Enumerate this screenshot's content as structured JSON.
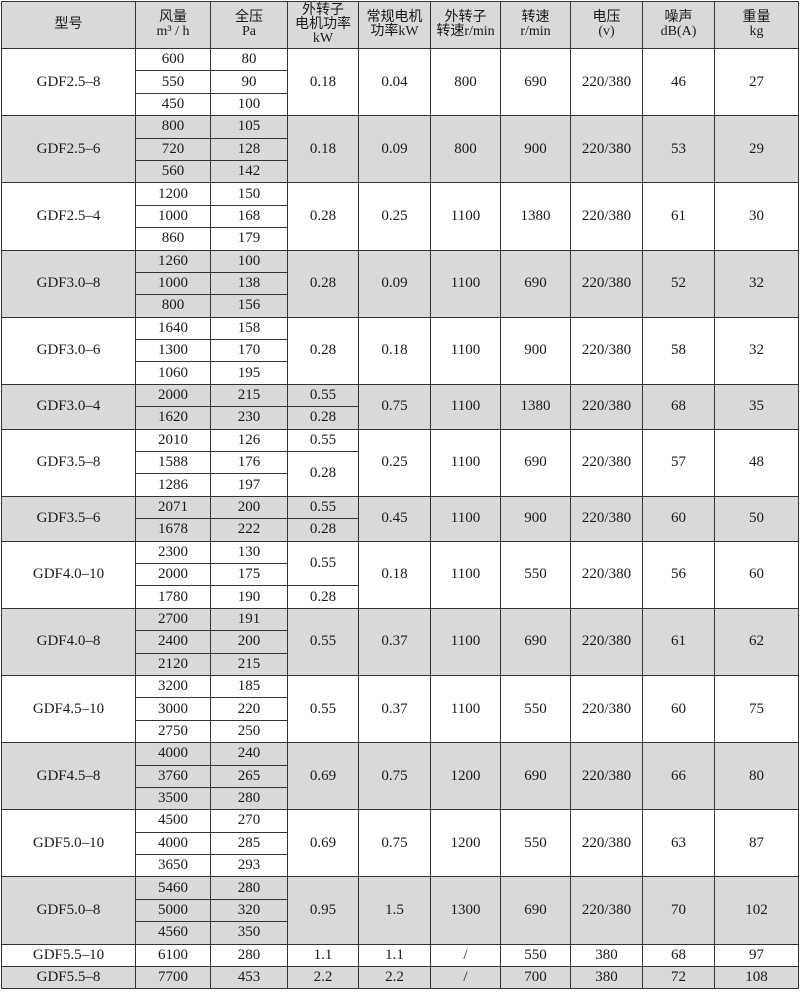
{
  "headers": [
    [
      "型号"
    ],
    [
      "风量",
      "m³ / h"
    ],
    [
      "全压",
      "Pa"
    ],
    [
      "外转子",
      "电机功率",
      "kW"
    ],
    [
      "常规电机",
      "功率kW"
    ],
    [
      "外转子",
      "转速r/min"
    ],
    [
      "转速",
      "r/min"
    ],
    [
      "电压",
      "(v)"
    ],
    [
      "噪声",
      "dB(A)"
    ],
    [
      "重量",
      "kg"
    ]
  ],
  "rows": [
    {
      "model": "GDF2.5–8",
      "flow": [
        "600",
        "550",
        "450"
      ],
      "pressure": [
        "80",
        "90",
        "100"
      ],
      "ext_power": [
        [
          "0.18",
          3
        ]
      ],
      "motor_power": "0.04",
      "ext_speed": "800",
      "speed": "690",
      "voltage": "220/380",
      "noise": "46",
      "weight": "27"
    },
    {
      "model": "GDF2.5–6",
      "flow": [
        "800",
        "720",
        "560"
      ],
      "pressure": [
        "105",
        "128",
        "142"
      ],
      "ext_power": [
        [
          "0.18",
          3
        ]
      ],
      "motor_power": "0.09",
      "ext_speed": "800",
      "speed": "900",
      "voltage": "220/380",
      "noise": "53",
      "weight": "29"
    },
    {
      "model": "GDF2.5–4",
      "flow": [
        "1200",
        "1000",
        "860"
      ],
      "pressure": [
        "150",
        "168",
        "179"
      ],
      "ext_power": [
        [
          "0.28",
          3
        ]
      ],
      "motor_power": "0.25",
      "ext_speed": "1100",
      "speed": "1380",
      "voltage": "220/380",
      "noise": "61",
      "weight": "30"
    },
    {
      "model": "GDF3.0–8",
      "flow": [
        "1260",
        "1000",
        "800"
      ],
      "pressure": [
        "100",
        "138",
        "156"
      ],
      "ext_power": [
        [
          "0.28",
          3
        ]
      ],
      "motor_power": "0.09",
      "ext_speed": "1100",
      "speed": "690",
      "voltage": "220/380",
      "noise": "52",
      "weight": "32"
    },
    {
      "model": "GDF3.0–6",
      "flow": [
        "1640",
        "1300",
        "1060"
      ],
      "pressure": [
        "158",
        "170",
        "195"
      ],
      "ext_power": [
        [
          "0.28",
          3
        ]
      ],
      "motor_power": "0.18",
      "ext_speed": "1100",
      "speed": "900",
      "voltage": "220/380",
      "noise": "58",
      "weight": "32"
    },
    {
      "model": "GDF3.0–4",
      "flow": [
        "2000",
        "1620"
      ],
      "pressure": [
        "215",
        "230"
      ],
      "ext_power": [
        [
          "0.55",
          1
        ],
        [
          "0.28",
          1
        ]
      ],
      "motor_power": "0.75",
      "ext_speed": "1100",
      "speed": "1380",
      "voltage": "220/380",
      "noise": "68",
      "weight": "35"
    },
    {
      "model": "GDF3.5–8",
      "flow": [
        "2010",
        "1588",
        "1286"
      ],
      "pressure": [
        "126",
        "176",
        "197"
      ],
      "ext_power": [
        [
          "0.55",
          1
        ],
        [
          "0.28",
          2
        ]
      ],
      "motor_power": "0.25",
      "ext_speed": "1100",
      "speed": "690",
      "voltage": "220/380",
      "noise": "57",
      "weight": "48"
    },
    {
      "model": "GDF3.5–6",
      "flow": [
        "2071",
        "1678"
      ],
      "pressure": [
        "200",
        "222"
      ],
      "ext_power": [
        [
          "0.55",
          1
        ],
        [
          "0.28",
          1
        ]
      ],
      "motor_power": "0.45",
      "ext_speed": "1100",
      "speed": "900",
      "voltage": "220/380",
      "noise": "60",
      "weight": "50"
    },
    {
      "model": "GDF4.0–10",
      "flow": [
        "2300",
        "2000",
        "1780"
      ],
      "pressure": [
        "130",
        "175",
        "190"
      ],
      "ext_power": [
        [
          "0.55",
          2
        ],
        [
          "0.28",
          1
        ]
      ],
      "motor_power": "0.18",
      "ext_speed": "1100",
      "speed": "550",
      "voltage": "220/380",
      "noise": "56",
      "weight": "60"
    },
    {
      "model": "GDF4.0–8",
      "flow": [
        "2700",
        "2400",
        "2120"
      ],
      "pressure": [
        "191",
        "200",
        "215"
      ],
      "ext_power": [
        [
          "0.55",
          3
        ]
      ],
      "motor_power": "0.37",
      "ext_speed": "1100",
      "speed": "690",
      "voltage": "220/380",
      "noise": "61",
      "weight": "62"
    },
    {
      "model": "GDF4.5–10",
      "flow": [
        "3200",
        "3000",
        "2750"
      ],
      "pressure": [
        "185",
        "220",
        "250"
      ],
      "ext_power": [
        [
          "0.55",
          3
        ]
      ],
      "motor_power": "0.37",
      "ext_speed": "1100",
      "speed": "550",
      "voltage": "220/380",
      "noise": "60",
      "weight": "75"
    },
    {
      "model": "GDF4.5–8",
      "flow": [
        "4000",
        "3760",
        "3500"
      ],
      "pressure": [
        "240",
        "265",
        "280"
      ],
      "ext_power": [
        [
          "0.69",
          3
        ]
      ],
      "motor_power": "0.75",
      "ext_speed": "1200",
      "speed": "690",
      "voltage": "220/380",
      "noise": "66",
      "weight": "80"
    },
    {
      "model": "GDF5.0–10",
      "flow": [
        "4500",
        "4000",
        "3650"
      ],
      "pressure": [
        "270",
        "285",
        "293"
      ],
      "ext_power": [
        [
          "0.69",
          3
        ]
      ],
      "motor_power": "0.75",
      "ext_speed": "1200",
      "speed": "550",
      "voltage": "220/380",
      "noise": "63",
      "weight": "87"
    },
    {
      "model": "GDF5.0–8",
      "flow": [
        "5460",
        "5000",
        "4560"
      ],
      "pressure": [
        "280",
        "320",
        "350"
      ],
      "ext_power": [
        [
          "0.95",
          3
        ]
      ],
      "motor_power": "1.5",
      "ext_speed": "1300",
      "speed": "690",
      "voltage": "220/380",
      "noise": "70",
      "weight": "102"
    },
    {
      "model": "GDF5.5–10",
      "flow": [
        "6100"
      ],
      "pressure": [
        "280"
      ],
      "ext_power": [
        [
          "1.1",
          1
        ]
      ],
      "motor_power": "1.1",
      "ext_speed": "/",
      "speed": "550",
      "voltage": "380",
      "noise": "68",
      "weight": "97"
    },
    {
      "model": "GDF5.5–8",
      "flow": [
        "7700"
      ],
      "pressure": [
        "453"
      ],
      "ext_power": [
        [
          "2.2",
          1
        ]
      ],
      "motor_power": "2.2",
      "ext_speed": "/",
      "speed": "700",
      "voltage": "380",
      "noise": "72",
      "weight": "108"
    }
  ],
  "colors": {
    "shade": "#d9d9d9",
    "border": "#333333"
  }
}
